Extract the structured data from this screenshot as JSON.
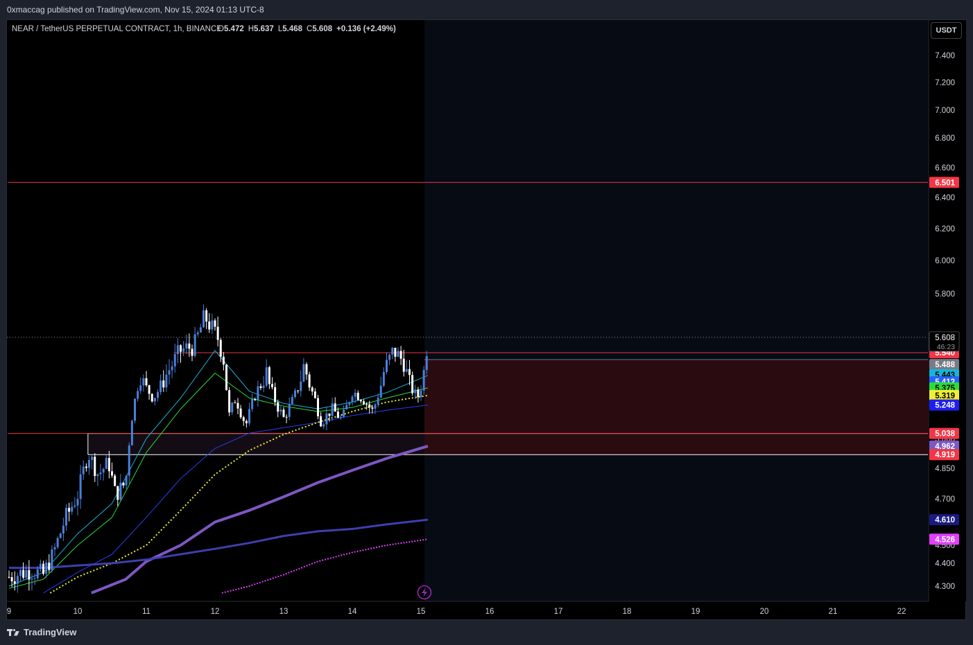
{
  "publisher_line": "0xmaccag published on TradingView.com, Nov 15, 2024 01:13 UTC-8",
  "legend": {
    "symbol": "NEAR / TetherUS PERPETUAL CONTRACT, 1h, BINANCE",
    "o_label": "O",
    "o_value": "5.472",
    "h_label": "H",
    "h_value": "5.637",
    "l_label": "L",
    "l_value": "5.468",
    "c_label": "C",
    "c_value": "5.608",
    "change": "+0.136 (+2.49%)"
  },
  "currency_button": "USDT",
  "footer_brand": "TradingView",
  "colors": {
    "up": "#4a7fd8",
    "down": "#ffffff",
    "resistance": "#f23645",
    "ema_cyan": "#18b4d8",
    "ema_green": "#2ddc3a",
    "ema_blue": "#2a3cf0",
    "sma_yellow": "#f0f030",
    "ma_purple": "#7e57c2",
    "ma_indigo": "#3f3fb0",
    "ma_magenta": "#e040fb",
    "zone_fill": "#2a0c10"
  },
  "chart_data": {
    "type": "candlestick",
    "instrument": "NEAR / TetherUS PERPETUAL CONTRACT",
    "interval": "1h",
    "exchange": "BINANCE",
    "x_ticks": [
      "9",
      "10",
      "11",
      "12",
      "13",
      "14",
      "15",
      "16",
      "17",
      "18",
      "19",
      "20",
      "21",
      "22"
    ],
    "y_ticks": [
      "4.300",
      "4.400",
      "4.500",
      "4.700",
      "4.850",
      "5.000",
      "5.800",
      "6.000",
      "6.200",
      "6.400",
      "6.600",
      "6.800",
      "7.000",
      "7.200",
      "7.400"
    ],
    "ylim": [
      4.27,
      7.6
    ],
    "last_price": 5.608,
    "countdown": "46:23",
    "anchors": [
      [
        9.0,
        4.34
      ],
      [
        9.3,
        4.37
      ],
      [
        9.5,
        4.35
      ],
      [
        9.6,
        4.42
      ],
      [
        9.8,
        4.6
      ],
      [
        10.0,
        4.72
      ],
      [
        10.15,
        4.93
      ],
      [
        10.3,
        4.82
      ],
      [
        10.45,
        4.88
      ],
      [
        10.55,
        4.72
      ],
      [
        10.7,
        4.78
      ],
      [
        10.8,
        5.2
      ],
      [
        10.9,
        5.45
      ],
      [
        11.1,
        5.3
      ],
      [
        11.3,
        5.45
      ],
      [
        11.5,
        5.55
      ],
      [
        11.7,
        5.57
      ],
      [
        11.85,
        5.7
      ],
      [
        12.05,
        5.6
      ],
      [
        12.15,
        5.48
      ],
      [
        12.2,
        5.16
      ],
      [
        12.3,
        5.3
      ],
      [
        12.45,
        5.1
      ],
      [
        12.6,
        5.35
      ],
      [
        12.75,
        5.45
      ],
      [
        12.9,
        5.25
      ],
      [
        13.0,
        5.15
      ],
      [
        13.15,
        5.3
      ],
      [
        13.3,
        5.49
      ],
      [
        13.45,
        5.3
      ],
      [
        13.55,
        5.12
      ],
      [
        13.7,
        5.22
      ],
      [
        13.85,
        5.14
      ],
      [
        14.0,
        5.35
      ],
      [
        14.15,
        5.3
      ],
      [
        14.3,
        5.2
      ],
      [
        14.45,
        5.45
      ],
      [
        14.6,
        5.55
      ],
      [
        14.75,
        5.5
      ],
      [
        14.85,
        5.38
      ],
      [
        14.95,
        5.3
      ],
      [
        15.05,
        5.47
      ],
      [
        15.1,
        5.608
      ]
    ],
    "lines": [
      {
        "price": 6.501,
        "label": "6.501",
        "color": "#f23645",
        "from_day": 8.98
      },
      {
        "price": 5.54,
        "label": "5.540",
        "color": "#f23645",
        "from_day": 11.4
      },
      {
        "price": 5.038,
        "label": "5.038",
        "color": "#f23645",
        "from_day": 8.98
      }
    ],
    "price_labels": [
      {
        "price": 5.488,
        "text": "5.488",
        "bg": "#787b86",
        "fg": "#ffffff"
      },
      {
        "price": 5.443,
        "text": "5.443",
        "bg": "#18b4d8",
        "fg": "#000000"
      },
      {
        "price": 5.412,
        "text": "5.412",
        "bg": "#2962ff",
        "fg": "#ffffff"
      },
      {
        "price": 5.375,
        "text": "5.375",
        "bg": "#2ddc3a",
        "fg": "#000000"
      },
      {
        "price": 5.319,
        "text": "5.319",
        "bg": "#f0f030",
        "fg": "#000000"
      },
      {
        "price": 5.248,
        "text": "5.248",
        "bg": "#1e1ef0",
        "fg": "#ffffff"
      },
      {
        "price": 4.962,
        "text": "4.962",
        "bg": "#7e57c2",
        "fg": "#ffffff"
      },
      {
        "price": 4.919,
        "text": "4.919",
        "bg": "#f23645",
        "fg": "#ffffff"
      },
      {
        "price": 4.61,
        "text": "4.610",
        "bg": "#1a1a80",
        "fg": "#ffffff"
      },
      {
        "price": 4.526,
        "text": "4.526",
        "bg": "#e040fb",
        "fg": "#ffffff"
      }
    ],
    "zones": [
      {
        "top": 5.51,
        "bottom": 4.919,
        "from_day": 15.05,
        "to_day": 22.4,
        "fill": "#2a0c10"
      },
      {
        "top": 5.038,
        "bottom": 4.919,
        "from_day": 10.15,
        "to_day": 15.05,
        "fill": "#140c14"
      }
    ],
    "moving_averages": [
      {
        "color": "#18b4d8",
        "width": 1,
        "dash": "",
        "points": [
          [
            9.0,
            4.3
          ],
          [
            9.5,
            4.36
          ],
          [
            10.0,
            4.55
          ],
          [
            10.5,
            4.68
          ],
          [
            11.0,
            5.0
          ],
          [
            11.5,
            5.3
          ],
          [
            12.0,
            5.55
          ],
          [
            12.5,
            5.35
          ],
          [
            13.0,
            5.26
          ],
          [
            13.5,
            5.22
          ],
          [
            14.0,
            5.27
          ],
          [
            14.5,
            5.34
          ],
          [
            15.1,
            5.44
          ]
        ]
      },
      {
        "color": "#2ddc3a",
        "width": 1,
        "dash": "",
        "points": [
          [
            9.0,
            4.29
          ],
          [
            9.5,
            4.33
          ],
          [
            10.0,
            4.5
          ],
          [
            10.5,
            4.62
          ],
          [
            11.0,
            4.93
          ],
          [
            11.5,
            5.22
          ],
          [
            12.0,
            5.45
          ],
          [
            12.5,
            5.3
          ],
          [
            13.0,
            5.24
          ],
          [
            13.5,
            5.2
          ],
          [
            14.0,
            5.23
          ],
          [
            14.5,
            5.3
          ],
          [
            15.1,
            5.375
          ]
        ]
      },
      {
        "color": "#2a3cf0",
        "width": 1,
        "dash": "",
        "points": [
          [
            9.5,
            4.27
          ],
          [
            10.0,
            4.36
          ],
          [
            10.5,
            4.45
          ],
          [
            11.0,
            4.62
          ],
          [
            11.5,
            4.8
          ],
          [
            12.0,
            4.95
          ],
          [
            12.5,
            5.04
          ],
          [
            13.0,
            5.08
          ],
          [
            13.5,
            5.12
          ],
          [
            14.0,
            5.17
          ],
          [
            14.5,
            5.21
          ],
          [
            15.1,
            5.248
          ]
        ]
      },
      {
        "color": "#f0f030",
        "width": 2,
        "dash": "2,3",
        "points": [
          [
            9.6,
            4.27
          ],
          [
            10.0,
            4.34
          ],
          [
            10.5,
            4.4
          ],
          [
            11.0,
            4.5
          ],
          [
            11.5,
            4.65
          ],
          [
            12.0,
            4.82
          ],
          [
            12.5,
            4.94
          ],
          [
            13.0,
            5.03
          ],
          [
            13.5,
            5.12
          ],
          [
            14.0,
            5.2
          ],
          [
            14.5,
            5.27
          ],
          [
            15.1,
            5.319
          ]
        ]
      },
      {
        "color": "#7e57c2",
        "width": 4,
        "dash": "",
        "points": [
          [
            10.2,
            4.27
          ],
          [
            10.7,
            4.33
          ],
          [
            11.0,
            4.41
          ],
          [
            11.5,
            4.5
          ],
          [
            12.0,
            4.6
          ],
          [
            12.5,
            4.65
          ],
          [
            13.0,
            4.71
          ],
          [
            13.5,
            4.78
          ],
          [
            14.0,
            4.84
          ],
          [
            14.5,
            4.9
          ],
          [
            15.1,
            4.962
          ]
        ]
      },
      {
        "color": "#3f3fb0",
        "width": 3,
        "dash": "",
        "points": [
          [
            9.0,
            4.38
          ],
          [
            9.5,
            4.38
          ],
          [
            10.0,
            4.39
          ],
          [
            10.5,
            4.4
          ],
          [
            11.0,
            4.42
          ],
          [
            11.5,
            4.45
          ],
          [
            12.0,
            4.48
          ],
          [
            12.5,
            4.51
          ],
          [
            13.0,
            4.54
          ],
          [
            13.5,
            4.56
          ],
          [
            14.0,
            4.57
          ],
          [
            14.5,
            4.59
          ],
          [
            15.1,
            4.61
          ]
        ]
      },
      {
        "color": "#e040fb",
        "width": 2,
        "dash": "2,2",
        "points": [
          [
            12.1,
            4.27
          ],
          [
            12.5,
            4.3
          ],
          [
            13.0,
            4.35
          ],
          [
            13.5,
            4.41
          ],
          [
            14.0,
            4.46
          ],
          [
            14.5,
            4.5
          ],
          [
            15.1,
            4.526
          ]
        ]
      }
    ]
  }
}
